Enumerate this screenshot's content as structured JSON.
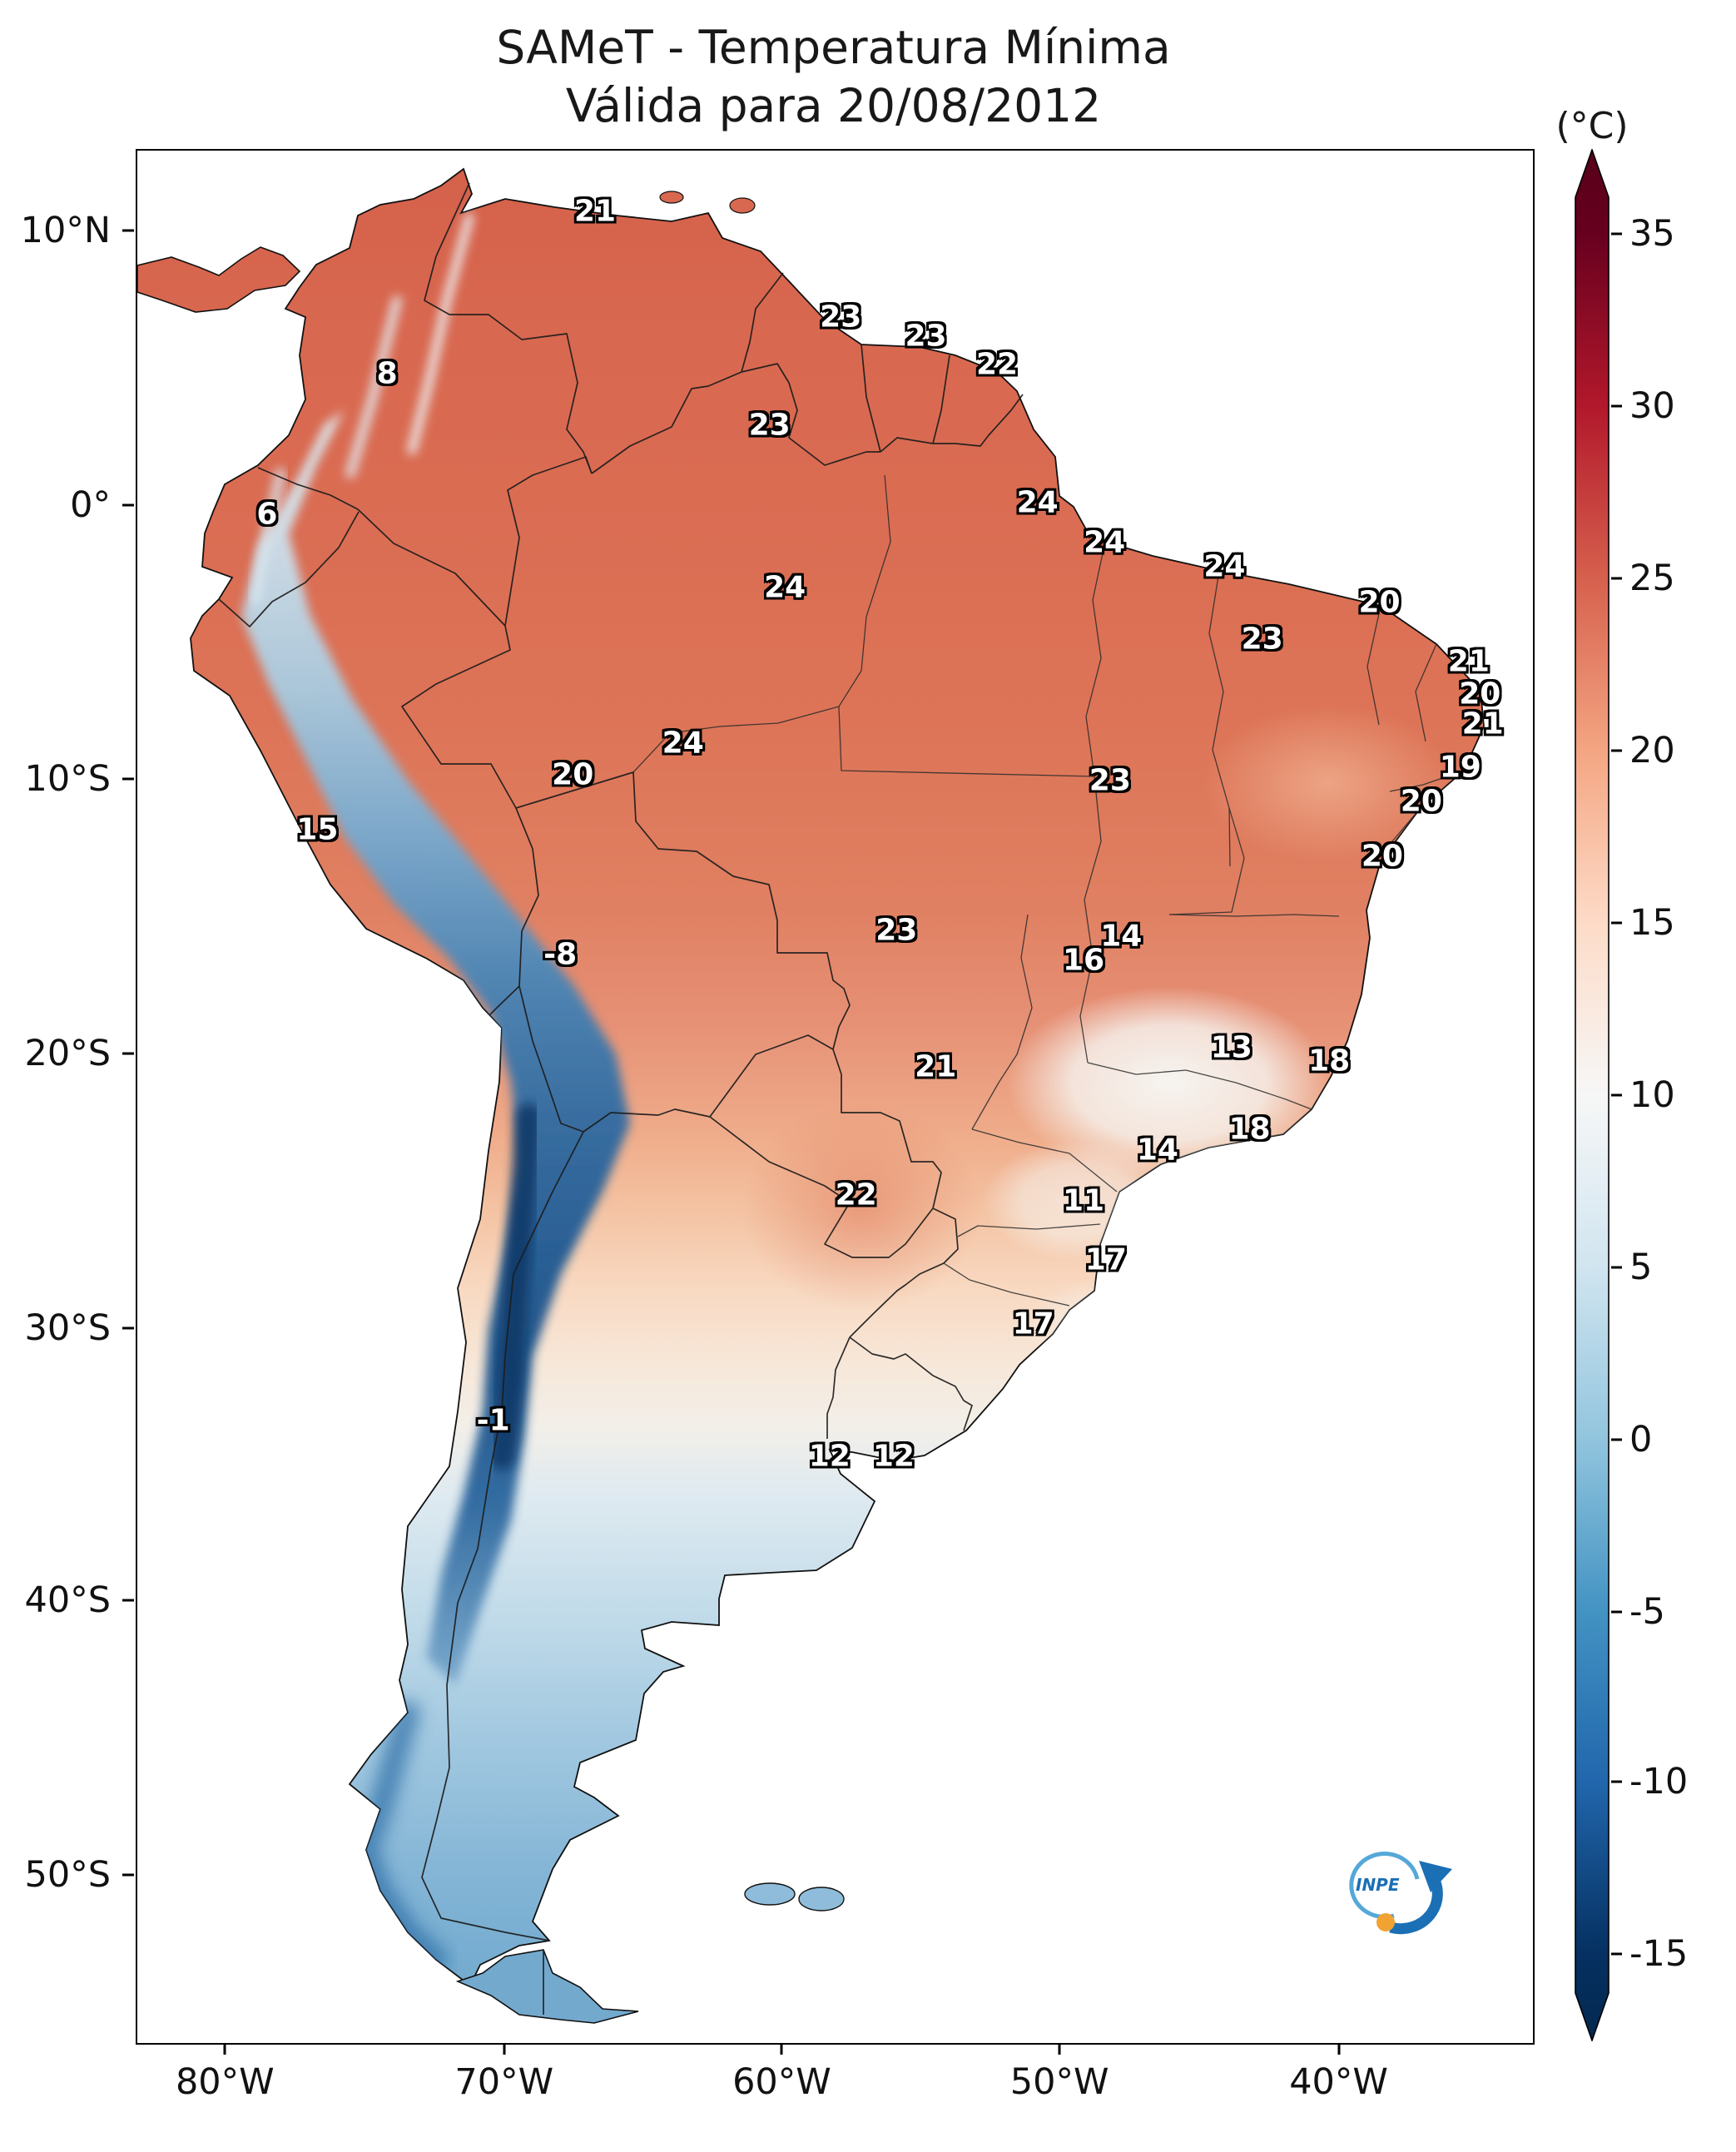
{
  "figure": {
    "title": "SAMeT - Temperatura Mínima",
    "subtitle": "Válida para 20/08/2012",
    "colorbar_unit": "(°C)",
    "logo_text": "INPE"
  },
  "chart_data": {
    "type": "heatmap",
    "title": "SAMeT - Temperatura Mínima",
    "subtitle": "Válida para 20/08/2012",
    "legend_position": "right-colorbar",
    "colorbar": {
      "unit": "(°C)",
      "min": -15,
      "max": 35,
      "palette": [
        "#67001f",
        "#b2182b",
        "#d6604d",
        "#f4a582",
        "#fddbc7",
        "#f7f7f7",
        "#d1e5f0",
        "#92c5de",
        "#4393c3",
        "#2166ac",
        "#053061"
      ],
      "ticks": [
        {
          "label": "35",
          "pos": 4.5
        },
        {
          "label": "30",
          "pos": 13.6
        },
        {
          "label": "25",
          "pos": 22.7
        },
        {
          "label": "20",
          "pos": 31.8
        },
        {
          "label": "15",
          "pos": 40.9
        },
        {
          "label": "10",
          "pos": 50.0
        },
        {
          "label": "5",
          "pos": 59.1
        },
        {
          "label": "0",
          "pos": 68.2
        },
        {
          "label": "-5",
          "pos": 77.3
        },
        {
          "label": "-10",
          "pos": 86.3
        },
        {
          "label": "-15",
          "pos": 95.4
        }
      ]
    },
    "y_axis": {
      "ticks": [
        {
          "label": "10°N",
          "pos": 4.3
        },
        {
          "label": "0°",
          "pos": 18.8
        },
        {
          "label": "10°S",
          "pos": 33.3
        },
        {
          "label": "20°S",
          "pos": 47.8
        },
        {
          "label": "30°S",
          "pos": 62.3
        },
        {
          "label": "40°S",
          "pos": 76.7
        },
        {
          "label": "50°S",
          "pos": 91.2
        }
      ]
    },
    "x_axis": {
      "ticks": [
        {
          "label": "80°W",
          "pos": 6.4
        },
        {
          "label": "70°W",
          "pos": 26.4
        },
        {
          "label": "60°W",
          "pos": 46.3
        },
        {
          "label": "50°W",
          "pos": 66.2
        },
        {
          "label": "40°W",
          "pos": 86.2
        }
      ]
    },
    "stations": [
      {
        "value": "21",
        "x": 32.8,
        "y": 3.2
      },
      {
        "value": "23",
        "x": 50.4,
        "y": 8.8
      },
      {
        "value": "23",
        "x": 56.5,
        "y": 9.8
      },
      {
        "value": "22",
        "x": 61.6,
        "y": 11.3
      },
      {
        "value": "8",
        "x": 17.9,
        "y": 11.8
      },
      {
        "value": "23",
        "x": 45.3,
        "y": 14.5
      },
      {
        "value": "24",
        "x": 64.5,
        "y": 18.6
      },
      {
        "value": "24",
        "x": 69.3,
        "y": 20.7
      },
      {
        "value": "6",
        "x": 9.3,
        "y": 19.2
      },
      {
        "value": "24",
        "x": 77.9,
        "y": 22.0
      },
      {
        "value": "24",
        "x": 46.4,
        "y": 23.1
      },
      {
        "value": "20",
        "x": 89.0,
        "y": 23.9
      },
      {
        "value": "23",
        "x": 80.6,
        "y": 25.8
      },
      {
        "value": "21",
        "x": 95.4,
        "y": 27.0
      },
      {
        "value": "20",
        "x": 96.2,
        "y": 28.7
      },
      {
        "value": "21",
        "x": 96.4,
        "y": 30.3
      },
      {
        "value": "24",
        "x": 39.1,
        "y": 31.3
      },
      {
        "value": "20",
        "x": 31.2,
        "y": 33.0
      },
      {
        "value": "19",
        "x": 94.8,
        "y": 32.6
      },
      {
        "value": "23",
        "x": 69.7,
        "y": 33.3
      },
      {
        "value": "20",
        "x": 92.0,
        "y": 34.4
      },
      {
        "value": "20",
        "x": 89.2,
        "y": 37.3
      },
      {
        "value": "15",
        "x": 12.9,
        "y": 35.9
      },
      {
        "value": "14",
        "x": 70.5,
        "y": 41.5
      },
      {
        "value": "16",
        "x": 67.8,
        "y": 42.8
      },
      {
        "value": "23",
        "x": 54.4,
        "y": 41.2
      },
      {
        "value": "-8",
        "x": 30.3,
        "y": 42.5
      },
      {
        "value": "13",
        "x": 78.4,
        "y": 47.4
      },
      {
        "value": "18",
        "x": 85.4,
        "y": 48.1
      },
      {
        "value": "21",
        "x": 57.2,
        "y": 48.4
      },
      {
        "value": "18",
        "x": 79.7,
        "y": 51.7
      },
      {
        "value": "14",
        "x": 73.1,
        "y": 52.8
      },
      {
        "value": "11",
        "x": 67.8,
        "y": 55.5
      },
      {
        "value": "22",
        "x": 51.5,
        "y": 55.2
      },
      {
        "value": "17",
        "x": 69.4,
        "y": 58.6
      },
      {
        "value": "17",
        "x": 64.2,
        "y": 62.0
      },
      {
        "value": "-1",
        "x": 25.5,
        "y": 67.1
      },
      {
        "value": "12",
        "x": 49.6,
        "y": 69.0
      },
      {
        "value": "12",
        "x": 54.2,
        "y": 69.0
      }
    ]
  }
}
